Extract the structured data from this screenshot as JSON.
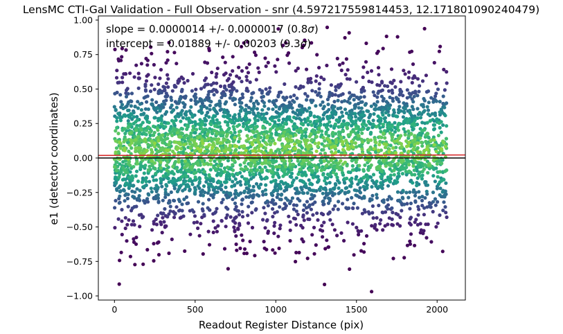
{
  "chart_data": {
    "type": "scatter",
    "title": "LensMC CTI-Gal Validation - Full Observation - snr (4.597217559814453, 12.171801090240479)",
    "xlabel": "Readout Register Distance (pix)",
    "ylabel": "e1 (detector coordinates)",
    "xlim": [
      -100,
      2175
    ],
    "ylim": [
      -1.03,
      1.03
    ],
    "xticks": [
      0,
      500,
      1000,
      1500,
      2000
    ],
    "yticks": [
      -1.0,
      -0.75,
      -0.5,
      -0.25,
      0.0,
      0.25,
      0.5,
      0.75,
      1.0
    ],
    "xtick_labels": [
      "0",
      "500",
      "1000",
      "1500",
      "2000"
    ],
    "ytick_labels": [
      "−1.00",
      "−0.75",
      "−0.50",
      "−0.25",
      "0.00",
      "0.25",
      "0.50",
      "0.75",
      "1.00"
    ],
    "grid": false,
    "point_distribution": {
      "x_range": [
        0,
        2060
      ],
      "y_center": 0.06,
      "y_spread": 0.27,
      "colormap": "viridis (point density)",
      "dense_color": "#b5de2b",
      "sparse_color": "#472c7a"
    },
    "fit_line": {
      "slope": 1.4e-06,
      "intercept": 0.01889,
      "color": "#d62728"
    },
    "reference_line": {
      "y": 0.0,
      "color": "#000000"
    },
    "annotations": {
      "slope_prefix": "slope = 0.0000014 +/- 0.0000017 (0.8",
      "intercept_prefix": "intercept = 0.01889 +/- 0.00203 (9.3",
      "sigma": "σ",
      "suffix": ")"
    }
  }
}
